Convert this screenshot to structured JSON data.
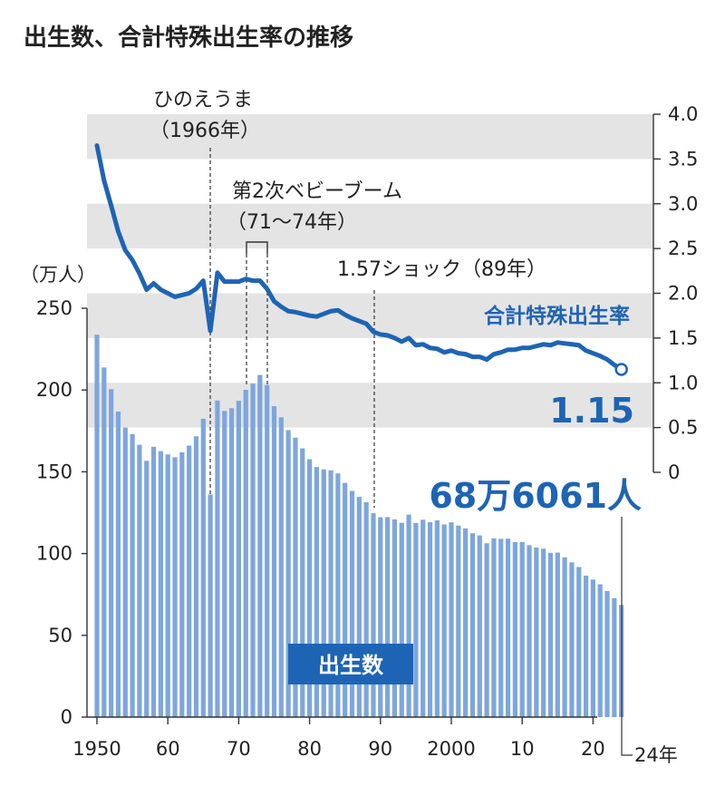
{
  "title": "出生数、合計特殊出生率の推移",
  "colors": {
    "bar": "#7ea6dc",
    "line": "#1e64b4",
    "band": "#e4e4e4",
    "badge": "#1e64b4"
  },
  "annotations": {
    "hinoeuma_1": "ひのえうま",
    "hinoeuma_2": "（1966年）",
    "babyboom_1": "第2次ベビーブーム",
    "babyboom_2": "（71～74年）",
    "shock": "1.57ショック（89年）"
  },
  "labels": {
    "left_unit": "（万人）",
    "tfr_series": "合計特殊出生率",
    "tfr_last": "1.15",
    "births_last": "68万6061人",
    "births_series": "出生数",
    "last_year": "24年"
  },
  "chart_data": {
    "type": "bar+line",
    "title": "出生数、合計特殊出生率の推移",
    "x_tick_labels": [
      "1950",
      "60",
      "70",
      "80",
      "90",
      "2000",
      "10",
      "20",
      "24年"
    ],
    "left_axis": {
      "label": "（万人）",
      "ylim": [
        0,
        250
      ],
      "ticks": [
        0,
        50,
        100,
        150,
        200,
        250
      ]
    },
    "right_axis": {
      "ylim": [
        0,
        4.0
      ],
      "ticks": [
        "0",
        "0.5",
        "1.0",
        "1.5",
        "2.0",
        "2.5",
        "3.0",
        "3.5",
        "4.0"
      ]
    },
    "x": [
      1950,
      1951,
      1952,
      1953,
      1954,
      1955,
      1956,
      1957,
      1958,
      1959,
      1960,
      1961,
      1962,
      1963,
      1964,
      1965,
      1966,
      1967,
      1968,
      1969,
      1970,
      1971,
      1972,
      1973,
      1974,
      1975,
      1976,
      1977,
      1978,
      1979,
      1980,
      1981,
      1982,
      1983,
      1984,
      1985,
      1986,
      1987,
      1988,
      1989,
      1990,
      1991,
      1992,
      1993,
      1994,
      1995,
      1996,
      1997,
      1998,
      1999,
      2000,
      2001,
      2002,
      2003,
      2004,
      2005,
      2006,
      2007,
      2008,
      2009,
      2010,
      2011,
      2012,
      2013,
      2014,
      2015,
      2016,
      2017,
      2018,
      2019,
      2020,
      2021,
      2022,
      2023,
      2024
    ],
    "series": [
      {
        "name": "出生数",
        "axis": "left",
        "type": "bar",
        "values": [
          233.8,
          213.8,
          200.5,
          186.8,
          177.0,
          173.1,
          166.5,
          156.7,
          165.3,
          162.6,
          160.6,
          158.9,
          161.9,
          166.0,
          171.7,
          182.4,
          136.1,
          193.6,
          187.2,
          188.9,
          193.4,
          200.1,
          203.9,
          209.2,
          203.0,
          190.1,
          183.3,
          175.5,
          170.9,
          164.3,
          157.7,
          152.9,
          151.5,
          150.9,
          149.0,
          143.2,
          138.3,
          134.7,
          131.4,
          124.7,
          122.2,
          122.3,
          120.9,
          118.8,
          123.8,
          118.7,
          120.7,
          119.2,
          120.3,
          117.8,
          119.1,
          117.1,
          115.4,
          112.4,
          111.1,
          106.3,
          109.3,
          109.0,
          109.1,
          107.0,
          107.1,
          105.1,
          103.7,
          103.0,
          100.4,
          100.6,
          97.7,
          94.6,
          91.8,
          86.5,
          84.1,
          81.2,
          77.1,
          72.7,
          68.6
        ]
      },
      {
        "name": "合計特殊出生率",
        "axis": "right",
        "type": "line",
        "values": [
          3.65,
          3.26,
          2.98,
          2.69,
          2.48,
          2.37,
          2.22,
          2.04,
          2.11,
          2.04,
          2.0,
          1.96,
          1.98,
          2.0,
          2.05,
          2.14,
          1.58,
          2.23,
          2.13,
          2.13,
          2.13,
          2.16,
          2.14,
          2.14,
          2.05,
          1.91,
          1.85,
          1.8,
          1.79,
          1.77,
          1.75,
          1.74,
          1.77,
          1.8,
          1.81,
          1.76,
          1.72,
          1.69,
          1.66,
          1.57,
          1.54,
          1.53,
          1.5,
          1.46,
          1.5,
          1.42,
          1.43,
          1.39,
          1.38,
          1.34,
          1.36,
          1.33,
          1.32,
          1.29,
          1.29,
          1.26,
          1.32,
          1.34,
          1.37,
          1.37,
          1.39,
          1.39,
          1.41,
          1.43,
          1.42,
          1.45,
          1.44,
          1.43,
          1.42,
          1.36,
          1.33,
          1.3,
          1.26,
          1.2,
          1.15
        ]
      }
    ]
  }
}
